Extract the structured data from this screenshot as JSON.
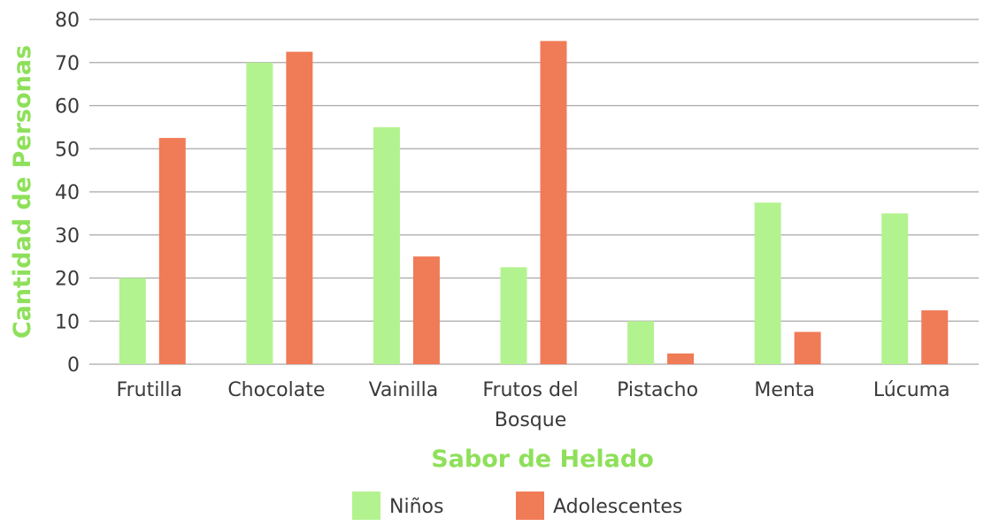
{
  "chart_data": {
    "type": "bar",
    "title": "",
    "xlabel": "Sabor de Helado",
    "ylabel": "Cantidad de Personas",
    "ylim": [
      0,
      80
    ],
    "yticks": [
      0,
      10,
      20,
      30,
      40,
      50,
      60,
      70,
      80
    ],
    "grid": true,
    "legend_position": "bottom-center",
    "categories": [
      [
        "Frutilla"
      ],
      [
        "Chocolate"
      ],
      [
        "Vainilla"
      ],
      [
        "Frutos del",
        "Bosque"
      ],
      [
        "Pistacho"
      ],
      [
        "Menta"
      ],
      [
        "Lúcuma"
      ]
    ],
    "series": [
      {
        "name": "Niños",
        "color": "#b3f38f",
        "values": [
          20,
          70,
          55,
          22.5,
          10,
          37.5,
          35
        ]
      },
      {
        "name": "Adolescentes",
        "color": "#f07b57",
        "values": [
          52.5,
          72.5,
          25,
          75,
          2.5,
          7.5,
          12.5
        ]
      }
    ],
    "colors": {
      "axis_title": "#8ee05a",
      "tick_text": "#3a3a3a",
      "grid": "#a8a8a8"
    }
  }
}
